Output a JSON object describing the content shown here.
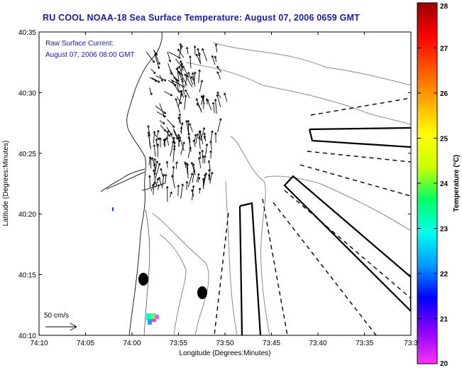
{
  "title": "RU COOL  NOAA-18  Sea Surface Temperature:  August 07, 2006 0659 GMT",
  "annotation": {
    "line1": "Raw Surface Current:",
    "line2": "August 07, 2006 08:00 GMT"
  },
  "scale_label": "50 cm/s",
  "x_axis": {
    "label": "Longitude (Degrees:Minutes)",
    "ticks": [
      "74:10",
      "74:05",
      "74:00",
      "73:55",
      "73:50",
      "73:45",
      "73:40",
      "73:35",
      "73:3"
    ]
  },
  "y_axis": {
    "label": "Latitude (Degrees:Minutes)",
    "ticks": [
      "40:10",
      "40:15",
      "40:20",
      "40:25",
      "40:30",
      "40:35"
    ]
  },
  "colorbar": {
    "label": "Temperature (°C)",
    "ticks": [
      "20",
      "21",
      "22",
      "23",
      "24",
      "25",
      "26",
      "27",
      "28"
    ],
    "min": 20,
    "max": 28,
    "colors": [
      "#ff33ff",
      "#8a00ff",
      "#0000ff",
      "#0099ff",
      "#00ffee",
      "#00ff66",
      "#ccff00",
      "#ffff00",
      "#ffaa00",
      "#ff5500",
      "#ff0000",
      "#990000"
    ]
  }
}
